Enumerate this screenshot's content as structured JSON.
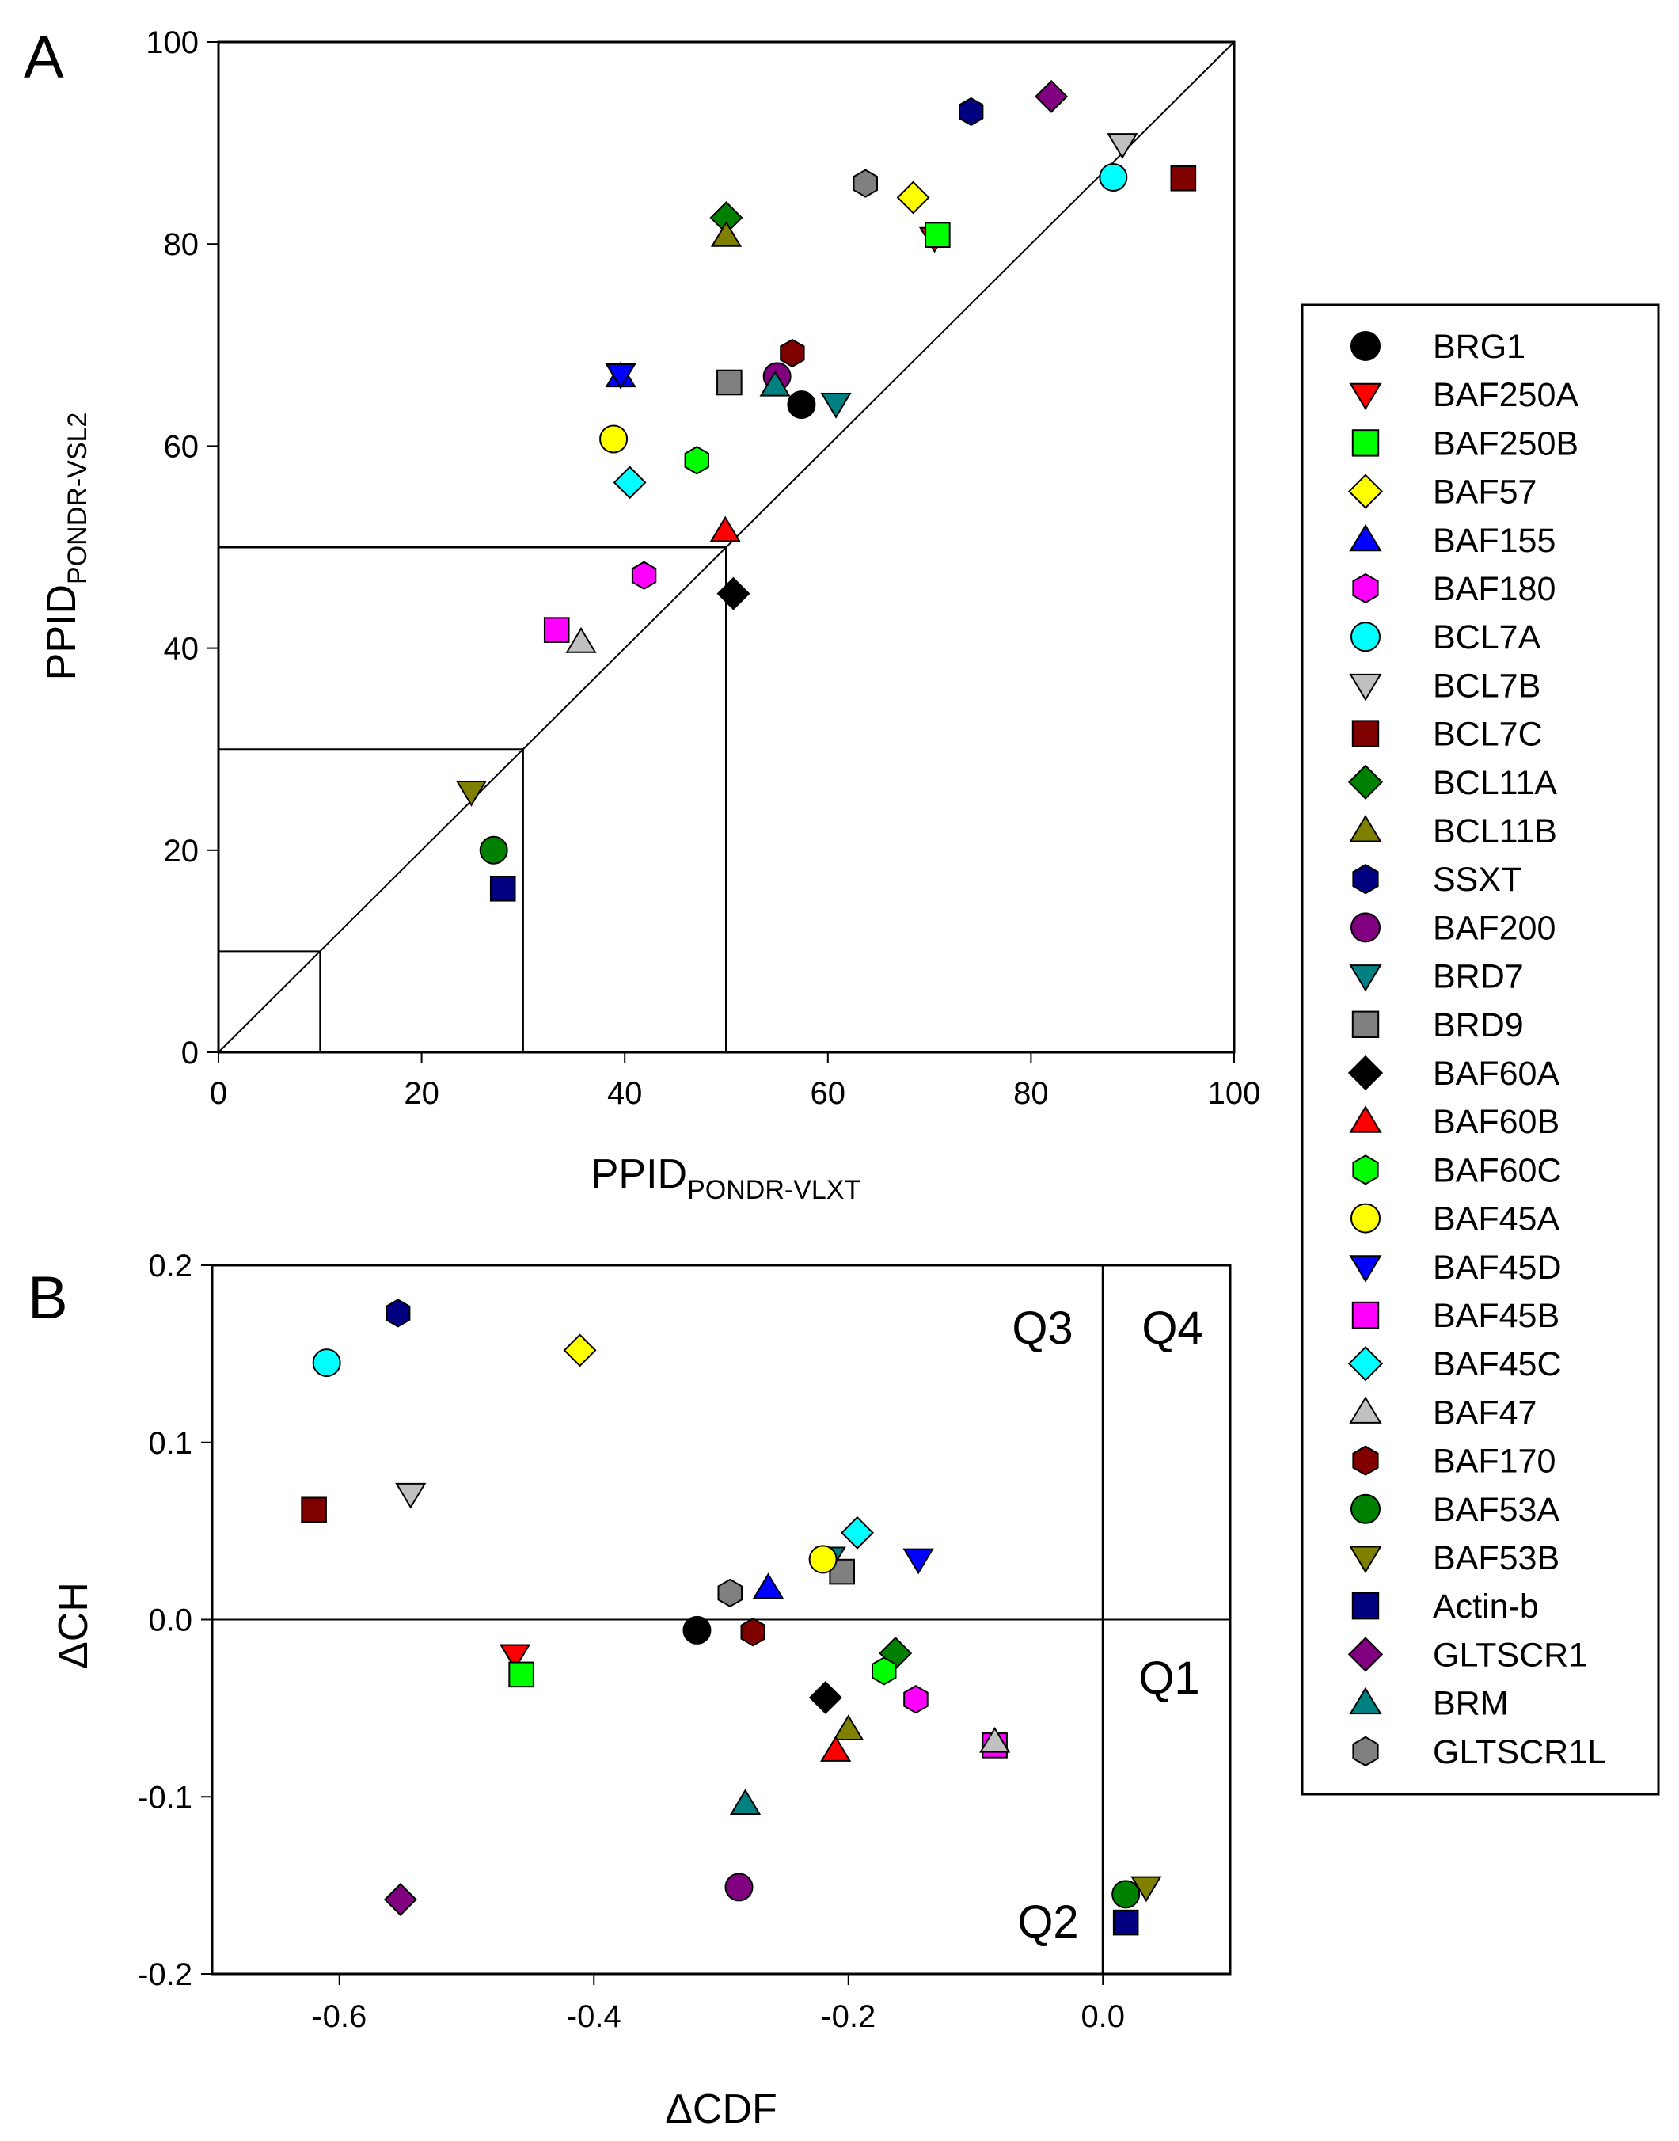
{
  "figure": {
    "legend_title": "",
    "legend": [
      {
        "name": "BRG1",
        "shape": "circle",
        "color": "#000000"
      },
      {
        "name": "BAF250A",
        "shape": "tri-down",
        "color": "#FF0000"
      },
      {
        "name": "BAF250B",
        "shape": "square",
        "color": "#00FF00"
      },
      {
        "name": "BAF57",
        "shape": "diamond",
        "color": "#FFFF00"
      },
      {
        "name": "BAF155",
        "shape": "tri-up",
        "color": "#0000FF"
      },
      {
        "name": "BAF180",
        "shape": "hexagon",
        "color": "#FF00FF"
      },
      {
        "name": "BCL7A",
        "shape": "circle",
        "color": "#00FFFF"
      },
      {
        "name": "BCL7B",
        "shape": "tri-down",
        "color": "#C0C0C0"
      },
      {
        "name": "BCL7C",
        "shape": "square",
        "color": "#800000"
      },
      {
        "name": "BCL11A",
        "shape": "diamond",
        "color": "#008000"
      },
      {
        "name": "BCL11B",
        "shape": "tri-up",
        "color": "#808000"
      },
      {
        "name": "SSXT",
        "shape": "hexagon",
        "color": "#000080"
      },
      {
        "name": "BAF200",
        "shape": "circle",
        "color": "#800080"
      },
      {
        "name": "BRD7",
        "shape": "tri-down",
        "color": "#008080"
      },
      {
        "name": "BRD9",
        "shape": "square",
        "color": "#808080"
      },
      {
        "name": "BAF60A",
        "shape": "diamond",
        "color": "#000000"
      },
      {
        "name": "BAF60B",
        "shape": "tri-up",
        "color": "#FF0000"
      },
      {
        "name": "BAF60C",
        "shape": "hexagon",
        "color": "#00FF00"
      },
      {
        "name": "BAF45A",
        "shape": "circle",
        "color": "#FFFF00"
      },
      {
        "name": "BAF45D",
        "shape": "tri-down",
        "color": "#0000FF"
      },
      {
        "name": "BAF45B",
        "shape": "square",
        "color": "#FF00FF"
      },
      {
        "name": "BAF45C",
        "shape": "diamond",
        "color": "#00FFFF"
      },
      {
        "name": "BAF47",
        "shape": "tri-up",
        "color": "#C0C0C0"
      },
      {
        "name": "BAF170",
        "shape": "hexagon",
        "color": "#800000"
      },
      {
        "name": "BAF53A",
        "shape": "circle",
        "color": "#008000"
      },
      {
        "name": "BAF53B",
        "shape": "tri-down",
        "color": "#808000"
      },
      {
        "name": "Actin-b",
        "shape": "square",
        "color": "#000080"
      },
      {
        "name": "GLTSCR1",
        "shape": "diamond",
        "color": "#800080"
      },
      {
        "name": "BRM",
        "shape": "tri-up",
        "color": "#008080"
      },
      {
        "name": "GLTSCR1L",
        "shape": "hexagon",
        "color": "#808080"
      }
    ]
  },
  "chart_data": [
    {
      "type": "scatter",
      "panel": "A",
      "title": "",
      "xlabel_main": "PPID",
      "xlabel_sub": "PONDR-VLXT",
      "ylabel_main": "PPID",
      "ylabel_sub": "PONDR-VSL2",
      "xlim": [
        0,
        100
      ],
      "ylim": [
        0,
        100
      ],
      "xticks": [
        "0",
        "20",
        "40",
        "60",
        "80",
        "100"
      ],
      "yticks": [
        "0",
        "20",
        "40",
        "60",
        "80",
        "100"
      ],
      "diagonal": [
        [
          0,
          0
        ],
        [
          100,
          100
        ]
      ],
      "boxes": [
        10,
        30,
        50
      ],
      "points": [
        {
          "name": "BRG1",
          "x": 57.4,
          "y": 64.1
        },
        {
          "name": "BAF250A",
          "x": 70.5,
          "y": 80.6
        },
        {
          "name": "BAF250B",
          "x": 70.8,
          "y": 80.9
        },
        {
          "name": "BAF57",
          "x": 68.4,
          "y": 84.6
        },
        {
          "name": "BAF155",
          "x": 39.6,
          "y": 66.9
        },
        {
          "name": "BAF180",
          "x": 41.9,
          "y": 47.2
        },
        {
          "name": "BCL7A",
          "x": 88.1,
          "y": 86.6
        },
        {
          "name": "BCL7B",
          "x": 89.0,
          "y": 89.9
        },
        {
          "name": "BCL7C",
          "x": 95.0,
          "y": 86.5
        },
        {
          "name": "BCL11A",
          "x": 50.0,
          "y": 82.6
        },
        {
          "name": "BCL11B",
          "x": 50.0,
          "y": 80.8
        },
        {
          "name": "SSXT",
          "x": 74.1,
          "y": 93.1
        },
        {
          "name": "BAF200",
          "x": 55.0,
          "y": 66.9
        },
        {
          "name": "BRD7",
          "x": 60.8,
          "y": 64.2
        },
        {
          "name": "BRD9",
          "x": 50.3,
          "y": 66.3
        },
        {
          "name": "BAF60A",
          "x": 50.7,
          "y": 45.4
        },
        {
          "name": "BAF60B",
          "x": 49.9,
          "y": 51.6
        },
        {
          "name": "BAF60C",
          "x": 47.1,
          "y": 58.6
        },
        {
          "name": "BAF45A",
          "x": 38.9,
          "y": 60.7
        },
        {
          "name": "BAF45D",
          "x": 39.6,
          "y": 67.1
        },
        {
          "name": "BAF45B",
          "x": 33.3,
          "y": 41.8
        },
        {
          "name": "BAF45C",
          "x": 40.5,
          "y": 56.4
        },
        {
          "name": "BAF47",
          "x": 35.7,
          "y": 40.6
        },
        {
          "name": "BAF170",
          "x": 56.5,
          "y": 69.2
        },
        {
          "name": "BAF53A",
          "x": 27.1,
          "y": 20.0
        },
        {
          "name": "BAF53B",
          "x": 24.9,
          "y": 25.8
        },
        {
          "name": "Actin-b",
          "x": 28.0,
          "y": 16.2
        },
        {
          "name": "GLTSCR1",
          "x": 82.0,
          "y": 94.6
        },
        {
          "name": "BRM",
          "x": 54.8,
          "y": 66.0
        },
        {
          "name": "GLTSCR1L",
          "x": 63.7,
          "y": 86.0
        }
      ]
    },
    {
      "type": "scatter",
      "panel": "B",
      "title": "",
      "xlabel": "ΔCDF",
      "ylabel": "ΔCH",
      "xlim": [
        -0.7,
        0.1
      ],
      "ylim": [
        -0.2,
        0.2
      ],
      "xticks": [
        "-0.6",
        "-0.4",
        "-0.2",
        "0.0"
      ],
      "yticks": [
        "-0.2",
        "-0.1",
        "0.0",
        "0.1",
        "0.2"
      ],
      "quadrants": [
        "Q1",
        "Q2",
        "Q3",
        "Q4"
      ],
      "points": [
        {
          "name": "BRG1",
          "x": -0.319,
          "y": -0.006
        },
        {
          "name": "BAF250A",
          "x": -0.462,
          "y": -0.02
        },
        {
          "name": "BAF250B",
          "x": -0.457,
          "y": -0.031
        },
        {
          "name": "BAF57",
          "x": -0.411,
          "y": 0.152
        },
        {
          "name": "BAF155",
          "x": -0.263,
          "y": 0.018
        },
        {
          "name": "BAF180",
          "x": -0.147,
          "y": -0.045
        },
        {
          "name": "BCL7A",
          "x": -0.61,
          "y": 0.145
        },
        {
          "name": "BCL7B",
          "x": -0.544,
          "y": 0.071
        },
        {
          "name": "BCL7C",
          "x": -0.62,
          "y": 0.062
        },
        {
          "name": "BCL11A",
          "x": -0.163,
          "y": -0.019
        },
        {
          "name": "BCL11B",
          "x": -0.2,
          "y": -0.062
        },
        {
          "name": "SSXT",
          "x": -0.554,
          "y": 0.173
        },
        {
          "name": "BAF200",
          "x": -0.286,
          "y": -0.151
        },
        {
          "name": "BRD7",
          "x": -0.214,
          "y": 0.035
        },
        {
          "name": "BRD9",
          "x": -0.205,
          "y": 0.027
        },
        {
          "name": "BAF60A",
          "x": -0.218,
          "y": -0.044
        },
        {
          "name": "BAF60B",
          "x": -0.21,
          "y": -0.074
        },
        {
          "name": "BAF60C",
          "x": -0.172,
          "y": -0.029
        },
        {
          "name": "BAF45A",
          "x": -0.22,
          "y": 0.034
        },
        {
          "name": "BAF45D",
          "x": -0.145,
          "y": 0.034
        },
        {
          "name": "BAF45B",
          "x": -0.085,
          "y": -0.071
        },
        {
          "name": "BAF45C",
          "x": -0.193,
          "y": 0.049
        },
        {
          "name": "BAF47",
          "x": -0.085,
          "y": -0.069
        },
        {
          "name": "BAF170",
          "x": -0.275,
          "y": -0.007
        },
        {
          "name": "BAF53A",
          "x": 0.018,
          "y": -0.155
        },
        {
          "name": "BAF53B",
          "x": 0.034,
          "y": -0.151
        },
        {
          "name": "Actin-b",
          "x": 0.018,
          "y": -0.171
        },
        {
          "name": "GLTSCR1",
          "x": -0.552,
          "y": -0.158
        },
        {
          "name": "BRM",
          "x": -0.281,
          "y": -0.104
        },
        {
          "name": "GLTSCR1L",
          "x": -0.293,
          "y": 0.015
        }
      ]
    }
  ]
}
